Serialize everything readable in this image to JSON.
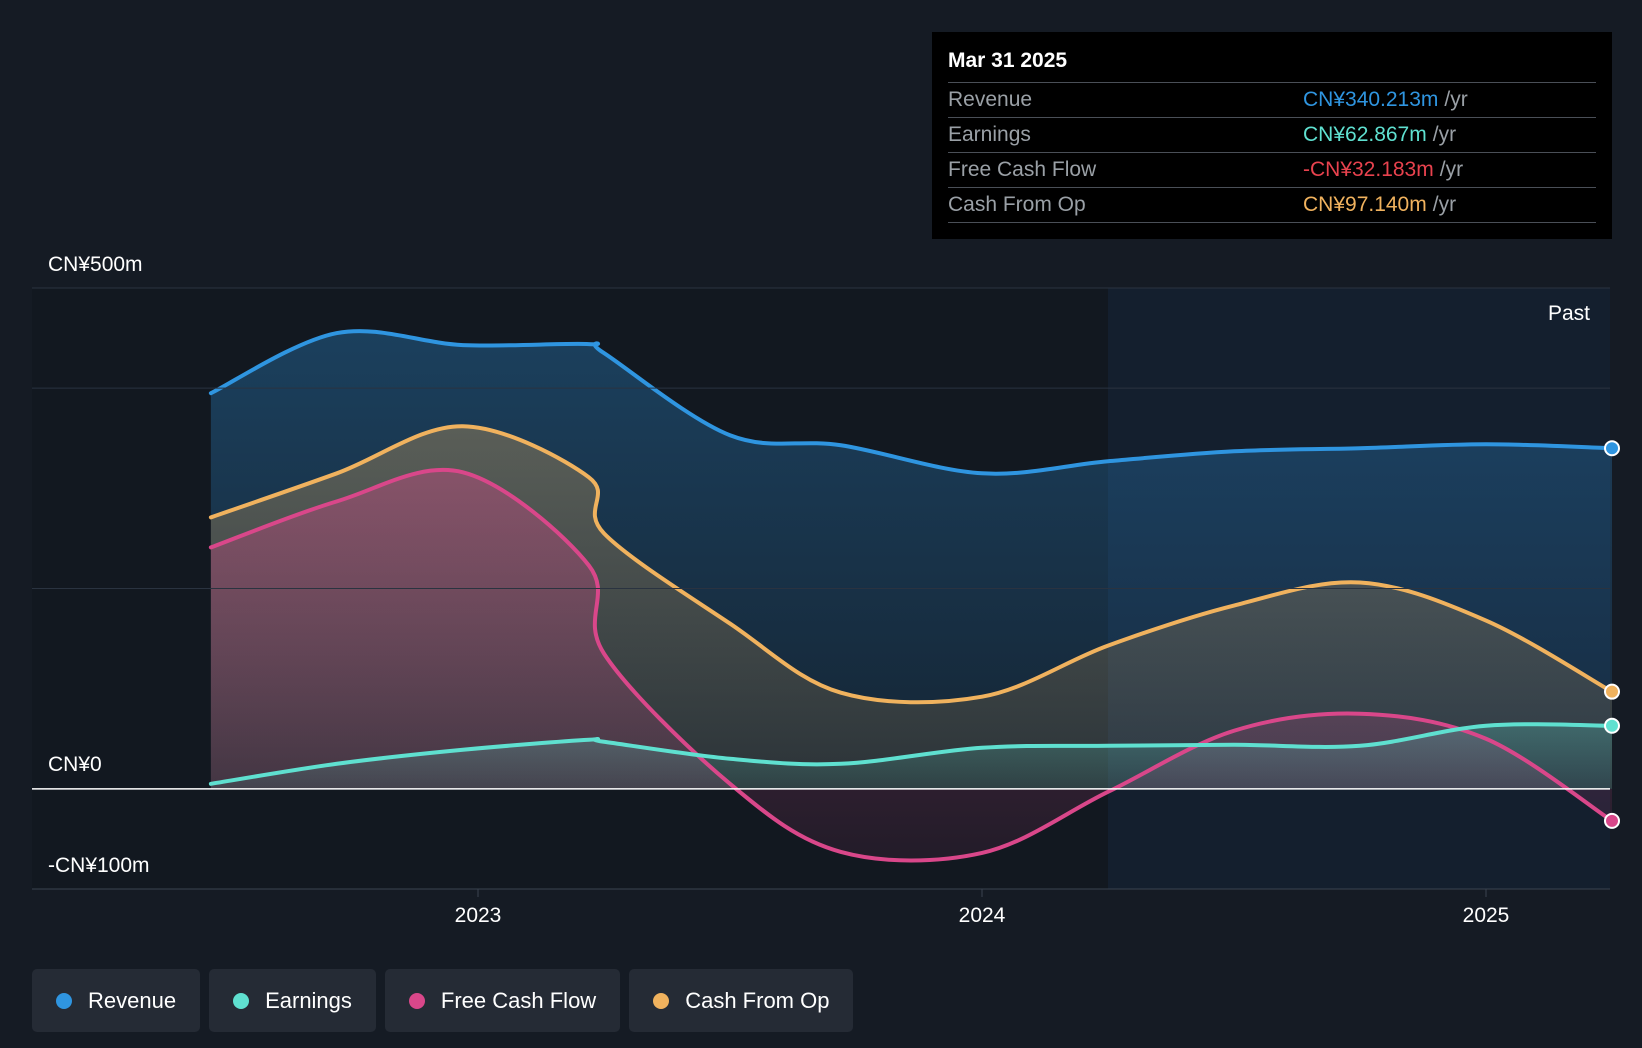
{
  "tooltip": {
    "date": "Mar 31 2025",
    "rows": [
      {
        "label": "Revenue",
        "value": "CN¥340.213m",
        "unit": "/yr",
        "color": "#2f95e0"
      },
      {
        "label": "Earnings",
        "value": "CN¥62.867m",
        "unit": "/yr",
        "color": "#5fe0d0"
      },
      {
        "label": "Free Cash Flow",
        "value": "-CN¥32.183m",
        "unit": "/yr",
        "color": "#e8424e"
      },
      {
        "label": "Cash From Op",
        "value": "CN¥97.140m",
        "unit": "/yr",
        "color": "#f0b25e"
      }
    ]
  },
  "past_label": "Past",
  "y_labels": {
    "top": "CN¥500m",
    "zero": "CN¥0",
    "bottom": "-CN¥100m"
  },
  "legend": [
    {
      "label": "Revenue",
      "color": "#2f95e0"
    },
    {
      "label": "Earnings",
      "color": "#5fe0d0"
    },
    {
      "label": "Free Cash Flow",
      "color": "#d9478a"
    },
    {
      "label": "Cash From Op",
      "color": "#f0b25e"
    }
  ],
  "chart_data": {
    "type": "area",
    "ylim": [
      -100,
      500
    ],
    "xlim": [
      2022.35,
      2025.25
    ],
    "x_ticks": [
      {
        "value": 2023,
        "label": "2023"
      },
      {
        "value": 2024,
        "label": "2024"
      },
      {
        "value": 2025,
        "label": "2025"
      }
    ],
    "past_region_start": 2024.25,
    "series": [
      {
        "name": "Revenue",
        "color": "#2f95e0",
        "x": [
          2022.47,
          2022.72,
          2022.97,
          2023.22,
          2023.25,
          2023.5,
          2023.72,
          2024.0,
          2024.25,
          2024.5,
          2024.75,
          2025.0,
          2025.25
        ],
        "values": [
          395,
          455,
          443,
          444,
          435,
          353,
          343,
          315,
          327,
          337,
          340,
          344,
          340
        ]
      },
      {
        "name": "Earnings",
        "color": "#5fe0d0",
        "x": [
          2022.47,
          2022.72,
          2022.97,
          2023.22,
          2023.25,
          2023.5,
          2023.72,
          2024.0,
          2024.25,
          2024.5,
          2024.75,
          2025.0,
          2025.25
        ],
        "values": [
          5,
          25,
          39,
          49,
          47,
          30,
          25,
          41,
          43,
          44,
          43,
          63,
          63
        ]
      },
      {
        "name": "Free Cash Flow",
        "color": "#d9478a",
        "x": [
          2022.47,
          2022.72,
          2022.97,
          2023.22,
          2023.25,
          2023.5,
          2023.72,
          2024.0,
          2024.25,
          2024.5,
          2024.75,
          2025.0,
          2025.25
        ],
        "values": [
          241,
          287,
          316,
          223,
          135,
          5,
          -63,
          -64,
          -3,
          58,
          75,
          50,
          -32
        ]
      },
      {
        "name": "Cash From Op",
        "color": "#f0b25e",
        "x": [
          2022.47,
          2022.72,
          2022.97,
          2023.22,
          2023.25,
          2023.5,
          2023.72,
          2024.0,
          2024.25,
          2024.5,
          2024.75,
          2025.0,
          2025.25
        ],
        "values": [
          271,
          315,
          362,
          311,
          255,
          165,
          96,
          92,
          143,
          183,
          206,
          168,
          97
        ]
      }
    ]
  }
}
